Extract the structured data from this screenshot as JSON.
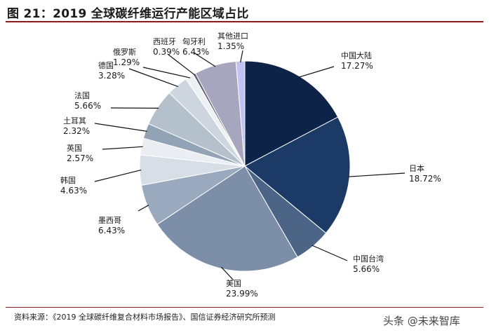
{
  "title": "图 21：2019 全球碳纤维运行产能区域占比",
  "source": "资料来源：《2019 全球碳纤维复合材料市场报告》、国信证券经济研究所预测",
  "watermark": "头条 @未来智库",
  "chart_data": {
    "type": "pie",
    "title": "2019 全球碳纤维运行产能区域占比",
    "unit": "%",
    "start": "12 o'clock",
    "direction": "clockwise",
    "slices": [
      {
        "name": "中国大陆",
        "value": 17.27,
        "label": "17.27%",
        "color": "#0d2448"
      },
      {
        "name": "日本",
        "value": 18.72,
        "label": "18.72%",
        "color": "#1b3a66"
      },
      {
        "name": "中国台湾",
        "value": 5.66,
        "label": "5.66%",
        "color": "#4c6586"
      },
      {
        "name": "美国",
        "value": 23.99,
        "label": "23.99%",
        "color": "#7d8fa8"
      },
      {
        "name": "墨西哥",
        "value": 6.43,
        "label": "6.43%",
        "color": "#9aa9bd"
      },
      {
        "name": "韩国",
        "value": 4.63,
        "label": "4.63%",
        "color": "#d8dee6"
      },
      {
        "name": "英国",
        "value": 2.57,
        "label": "2.57%",
        "color": "#eaeef2"
      },
      {
        "name": "土耳其",
        "value": 2.32,
        "label": "2.32%",
        "color": "#93a3b6"
      },
      {
        "name": "法国",
        "value": 5.66,
        "label": "5.66%",
        "color": "#b5c0cd"
      },
      {
        "name": "德国",
        "value": 3.28,
        "label": "3.28%",
        "color": "#cdd5de"
      },
      {
        "name": "俄罗斯",
        "value": 1.29,
        "label": "1.29%",
        "color": "#eef1f4"
      },
      {
        "name": "西班牙",
        "value": 0.39,
        "label": "0.39%",
        "color": "#5a5f6b"
      },
      {
        "name": "匈牙利",
        "value": 6.43,
        "label": "6.43%",
        "color": "#a7a6bf"
      },
      {
        "name": "其他进口",
        "value": 1.35,
        "label": "1.35%",
        "color": "#c4c2f2"
      }
    ]
  }
}
